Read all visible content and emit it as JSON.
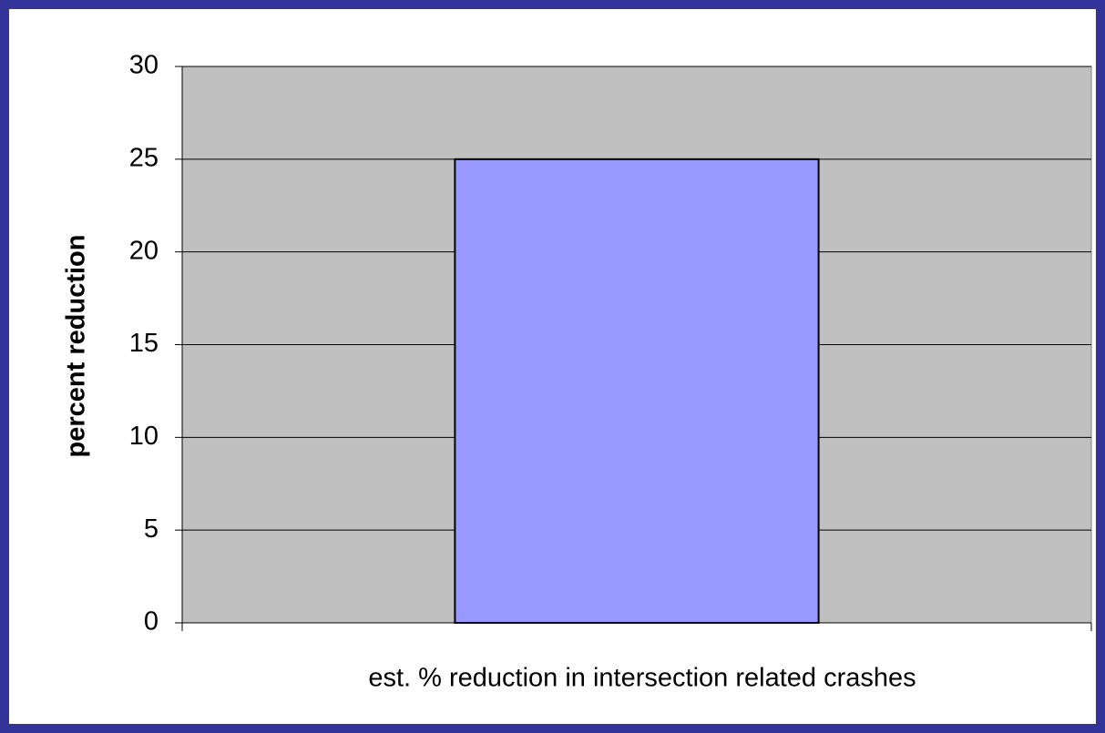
{
  "chart_data": {
    "type": "bar",
    "categories": [
      "est. % reduction in intersection related crashes"
    ],
    "values": [
      25
    ],
    "color": "#9999ff",
    "y_label": "percent reduction",
    "ylim": [
      0,
      30
    ],
    "yticks": [
      0,
      5,
      10,
      15,
      20,
      25,
      30
    ],
    "grid": true
  }
}
